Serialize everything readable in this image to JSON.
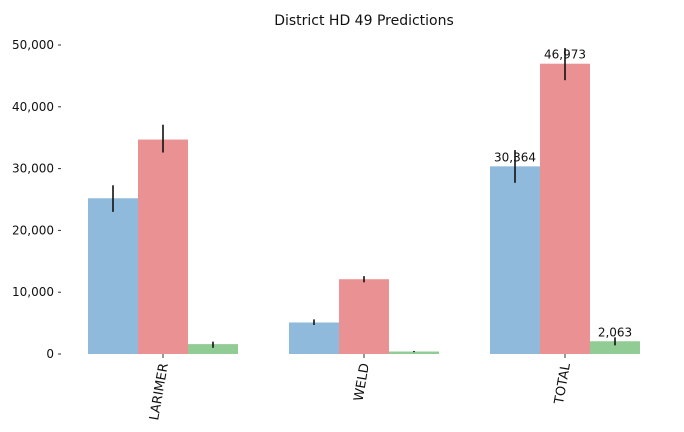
{
  "chart_data": {
    "type": "bar",
    "title": "District HD 49 Predictions",
    "categories": [
      "LARIMER",
      "WELD",
      "TOTAL"
    ],
    "series": [
      {
        "color": "#8FBADB",
        "values": [
          25200,
          5100,
          30364
        ],
        "error_low": [
          23000,
          4700,
          27700
        ],
        "error_high": [
          27300,
          5600,
          33000
        ]
      },
      {
        "color": "#E99193",
        "values": [
          34700,
          12100,
          46973
        ],
        "error_low": [
          32600,
          11600,
          44300
        ],
        "error_high": [
          37100,
          12600,
          49500
        ]
      },
      {
        "color": "#91CC94",
        "values": [
          1600,
          400,
          2063
        ],
        "error_low": [
          1000,
          300,
          1400
        ],
        "error_high": [
          2000,
          500,
          2700
        ]
      }
    ],
    "data_labels": [
      {
        "category": "TOTAL",
        "series": 0,
        "text": "30,364"
      },
      {
        "category": "TOTAL",
        "series": 1,
        "text": "46,973"
      },
      {
        "category": "TOTAL",
        "series": 2,
        "text": "2,063"
      }
    ],
    "ylim": [
      0,
      50000
    ],
    "yticks": [
      0,
      10000,
      20000,
      30000,
      40000,
      50000
    ],
    "ytick_labels": [
      "0",
      "10,000",
      "20,000",
      "30,000",
      "40,000",
      "50,000"
    ],
    "xlabel": "",
    "ylabel": "",
    "grid": false
  }
}
